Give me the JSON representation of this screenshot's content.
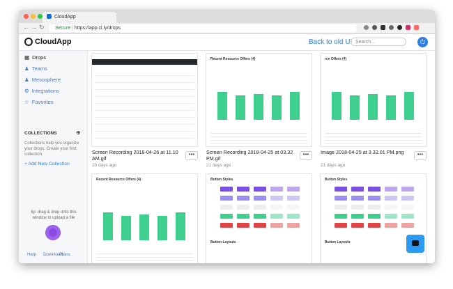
{
  "browser": {
    "tab_title": "CloudApp",
    "secure_label": "Secure",
    "url": "https://app.cl.ly/drops"
  },
  "header": {
    "logo": "CloudApp",
    "back_link": "Back to old UI",
    "search_placeholder": "Search..."
  },
  "sidebar": {
    "nav": [
      "Drops",
      "Teams",
      "Mesosphere",
      "Integrations",
      "Favorites"
    ],
    "collections_title": "COLLECTIONS",
    "collections_help": "Collections help you organize your drops. Create your first collection.",
    "add_collection": "+ Add New Collection",
    "tip": "tip: drag & drop onto this window to upload a file",
    "footer": [
      "Help",
      "Download",
      "Plans"
    ]
  },
  "drops": [
    {
      "name": "Screen Recording 2018-04-26 at 11.10 AM.gif",
      "age": "20 days ago"
    },
    {
      "name": "Screen Recording 2018-04-25 at 03.32 PM.gif",
      "age": "21 days ago",
      "thumb_title": "Recent Resource Offers (4)"
    },
    {
      "name": "Image 2018-04-25 at 3.32.01 PM.png",
      "age": "21 days ago",
      "thumb_title": "rce Offers (4)"
    },
    {
      "thumb_title": "Recent Resource Offers (4)"
    },
    {
      "thumb_title": "Button Styles",
      "thumb_subtitle": "Button Layouts"
    },
    {
      "thumb_title": "Button Styles",
      "thumb_subtitle": "Button Layouts"
    }
  ]
}
